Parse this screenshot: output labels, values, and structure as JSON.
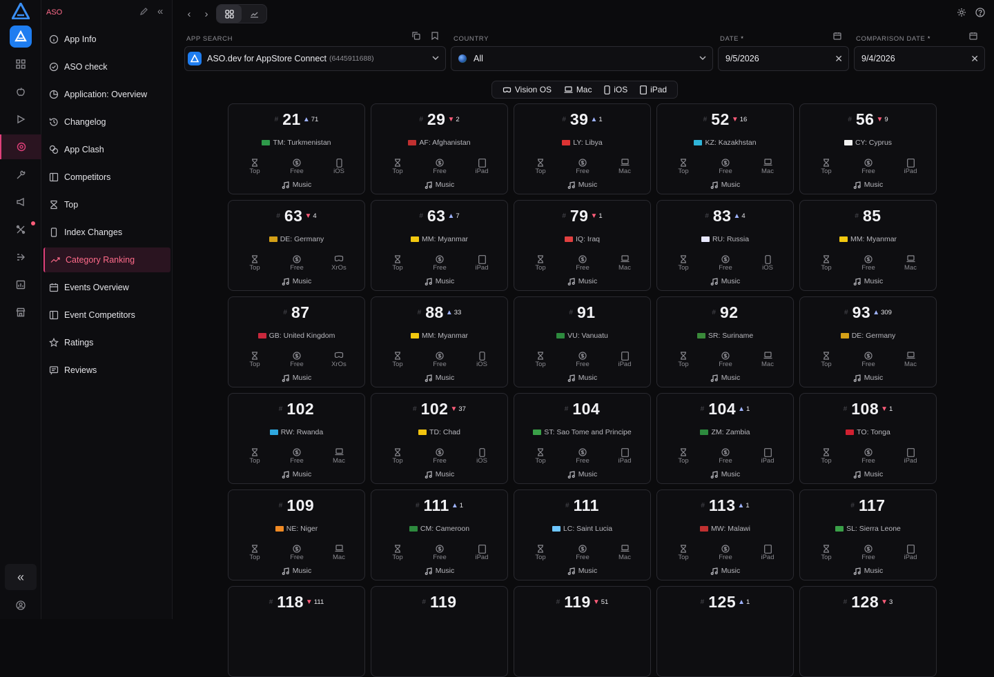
{
  "colors": {
    "accent": "#e0407a",
    "brand": "#1e7df0",
    "up": "#9fb3ff",
    "down": "#ff5d7a"
  },
  "sidebar": {
    "title": "ASO",
    "items": [
      {
        "label": "App Info",
        "icon": "info-circle-icon"
      },
      {
        "label": "ASO check",
        "icon": "check-circle-icon"
      },
      {
        "label": "Application: Overview",
        "icon": "pie-icon"
      },
      {
        "label": "Changelog",
        "icon": "history-icon"
      },
      {
        "label": "App Clash",
        "icon": "clash-icon"
      },
      {
        "label": "Competitors",
        "icon": "board-icon"
      },
      {
        "label": "Top",
        "icon": "trophy-icon"
      },
      {
        "label": "Index Changes",
        "icon": "phone-icon"
      },
      {
        "label": "Category Ranking",
        "icon": "trend-icon",
        "active": true
      },
      {
        "label": "Events Overview",
        "icon": "calendar-icon"
      },
      {
        "label": "Event Competitors",
        "icon": "board-icon"
      },
      {
        "label": "Ratings",
        "icon": "star-icon"
      },
      {
        "label": "Reviews",
        "icon": "review-icon"
      }
    ]
  },
  "filters": {
    "app_search_label": "APP SEARCH",
    "app_name": "ASO.dev for AppStore Connect",
    "app_id": "(6445911688)",
    "country_label": "COUNTRY",
    "country_value": "All",
    "date_label": "DATE",
    "date_value": "9/5/2026",
    "comparison_label": "COMPARISON DATE",
    "comparison_value": "9/4/2026",
    "required_mark": "*"
  },
  "platforms": [
    "Vision OS",
    "Mac",
    "iOS",
    "iPad"
  ],
  "card_labels": {
    "top": "Top",
    "free": "Free"
  },
  "cards": [
    {
      "rank": "21",
      "dir": "up",
      "delta": "71",
      "country": "TM: Turkmenistan",
      "device": "iOS",
      "category": "Music",
      "flag": "#2e9a4a"
    },
    {
      "rank": "29",
      "dir": "down",
      "delta": "2",
      "country": "AF: Afghanistan",
      "device": "iPad",
      "category": "Music",
      "flag": "#c03030"
    },
    {
      "rank": "39",
      "dir": "up",
      "delta": "1",
      "country": "LY: Libya",
      "device": "Mac",
      "category": "Music",
      "flag": "#d33"
    },
    {
      "rank": "52",
      "dir": "down",
      "delta": "16",
      "country": "KZ: Kazakhstan",
      "device": "Mac",
      "category": "Music",
      "flag": "#2fb4d8"
    },
    {
      "rank": "56",
      "dir": "down",
      "delta": "9",
      "country": "CY: Cyprus",
      "device": "iPad",
      "category": "Music",
      "flag": "#f2f2f2"
    },
    {
      "rank": "63",
      "dir": "down",
      "delta": "4",
      "country": "DE: Germany",
      "device": "XrOs",
      "category": "Music",
      "flag": "#d4a017"
    },
    {
      "rank": "63",
      "dir": "up",
      "delta": "7",
      "country": "MM: Myanmar",
      "device": "iPad",
      "category": "Music",
      "flag": "#f2c80f"
    },
    {
      "rank": "79",
      "dir": "down",
      "delta": "1",
      "country": "IQ: Iraq",
      "device": "Mac",
      "category": "Music",
      "flag": "#e04040"
    },
    {
      "rank": "83",
      "dir": "up",
      "delta": "4",
      "country": "RU: Russia",
      "device": "iOS",
      "category": "Music",
      "flag": "#e8e8ff"
    },
    {
      "rank": "85",
      "dir": "",
      "delta": "",
      "country": "MM: Myanmar",
      "device": "Mac",
      "category": "Music",
      "flag": "#f2c80f"
    },
    {
      "rank": "87",
      "dir": "",
      "delta": "",
      "country": "GB: United Kingdom",
      "device": "XrOs",
      "category": "Music",
      "flag": "#c8283c"
    },
    {
      "rank": "88",
      "dir": "up",
      "delta": "33",
      "country": "MM: Myanmar",
      "device": "iOS",
      "category": "Music",
      "flag": "#f2c80f"
    },
    {
      "rank": "91",
      "dir": "",
      "delta": "",
      "country": "VU: Vanuatu",
      "device": "iPad",
      "category": "Music",
      "flag": "#2d8a3e"
    },
    {
      "rank": "92",
      "dir": "",
      "delta": "",
      "country": "SR: Suriname",
      "device": "Mac",
      "category": "Music",
      "flag": "#3a8a3a"
    },
    {
      "rank": "93",
      "dir": "up",
      "delta": "309",
      "country": "DE: Germany",
      "device": "Mac",
      "category": "Music",
      "flag": "#d4a017"
    },
    {
      "rank": "102",
      "dir": "",
      "delta": "",
      "country": "RW: Rwanda",
      "device": "Mac",
      "category": "Music",
      "flag": "#2fa8e0"
    },
    {
      "rank": "102",
      "dir": "down",
      "delta": "37",
      "country": "TD: Chad",
      "device": "iOS",
      "category": "Music",
      "flag": "#f2c40f"
    },
    {
      "rank": "104",
      "dir": "",
      "delta": "",
      "country": "ST: Sao Tome and Principe",
      "device": "iPad",
      "category": "Music",
      "flag": "#3aa048"
    },
    {
      "rank": "104",
      "dir": "up",
      "delta": "1",
      "country": "ZM: Zambia",
      "device": "iPad",
      "category": "Music",
      "flag": "#2d8a3e"
    },
    {
      "rank": "108",
      "dir": "down",
      "delta": "1",
      "country": "TO: Tonga",
      "device": "iPad",
      "category": "Music",
      "flag": "#d02030"
    },
    {
      "rank": "109",
      "dir": "",
      "delta": "",
      "country": "NE: Niger",
      "device": "Mac",
      "category": "Music",
      "flag": "#f08a24"
    },
    {
      "rank": "111",
      "dir": "up",
      "delta": "1",
      "country": "CM: Cameroon",
      "device": "iPad",
      "category": "Music",
      "flag": "#2d8a3e"
    },
    {
      "rank": "111",
      "dir": "",
      "delta": "",
      "country": "LC: Saint Lucia",
      "device": "Mac",
      "category": "Music",
      "flag": "#6ec6ff"
    },
    {
      "rank": "113",
      "dir": "up",
      "delta": "1",
      "country": "MW: Malawi",
      "device": "iPad",
      "category": "Music",
      "flag": "#c03030"
    },
    {
      "rank": "117",
      "dir": "",
      "delta": "",
      "country": "SL: Sierra Leone",
      "device": "iPad",
      "category": "Music",
      "flag": "#3aa048"
    },
    {
      "rank": "118",
      "dir": "down",
      "delta": "111",
      "country": "",
      "device": "",
      "category": "",
      "flag": ""
    },
    {
      "rank": "119",
      "dir": "",
      "delta": "",
      "country": "",
      "device": "",
      "category": "",
      "flag": ""
    },
    {
      "rank": "119",
      "dir": "down",
      "delta": "51",
      "country": "",
      "device": "",
      "category": "",
      "flag": ""
    },
    {
      "rank": "125",
      "dir": "up",
      "delta": "1",
      "country": "",
      "device": "",
      "category": "",
      "flag": ""
    },
    {
      "rank": "128",
      "dir": "down",
      "delta": "3",
      "country": "",
      "device": "",
      "category": "",
      "flag": ""
    }
  ]
}
